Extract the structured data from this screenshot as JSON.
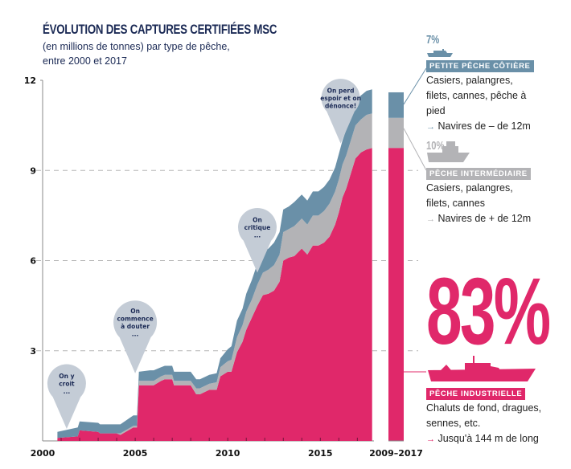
{
  "title": "ÉVOLUTION DES CAPTURES CERTIFIÉES MSC",
  "subtitle_line1": "(en millions de tonnes) par type de pêche,",
  "subtitle_line2": "entre 2000 et 2017",
  "colors": {
    "industrial": "#e0286a",
    "intermediate": "#b3b3b6",
    "small": "#6a90a8",
    "pin": "#c4ccd6",
    "text_dark": "#1b2a55"
  },
  "pins": [
    {
      "lines": [
        "On y",
        "croit",
        "..."
      ],
      "year": 2001.3,
      "tip_value": 0.4
    },
    {
      "lines": [
        "On",
        "commence",
        "à douter",
        "..."
      ],
      "year": 2005.0,
      "tip_value": 2.25
    },
    {
      "lines": [
        "On",
        "critique",
        "..."
      ],
      "year": 2011.6,
      "tip_value": 5.6
    },
    {
      "lines": [
        "On perd",
        "espoir et on",
        "dénonce!"
      ],
      "year": 2016.1,
      "tip_value": 9.9
    }
  ],
  "legend": {
    "small": {
      "pct": "7%",
      "label": "PETITE PÊCHE CÔTIÈRE",
      "desc": "Casiers, palangres, filets, cannes, pêche à pied",
      "vessels": "Navires de – de 12m"
    },
    "intermediate": {
      "pct": "10%",
      "label": "PÊCHE INTERMÉDIAIRE",
      "desc": "Casiers, palangres, filets, cannes",
      "vessels": "Navires de + de 12m"
    },
    "industrial": {
      "pct": "83%",
      "label": "PÊCHE INDUSTRIELLE",
      "desc": "Chaluts de fond, dragues, sennes, etc.",
      "vessels": "Jusqu'à 144 m de long"
    }
  },
  "chart_data": {
    "type": "area",
    "stacked": true,
    "title": "ÉVOLUTION DES CAPTURES CERTIFIÉES MSC",
    "subtitle": "(en millions de tonnes) par type de pêche, entre 2000 et 2017",
    "xlabel": "",
    "ylabel": "millions de tonnes",
    "xlim": [
      2000,
      2017.9
    ],
    "ylim": [
      0,
      12
    ],
    "yticks": [
      3,
      6,
      9,
      12
    ],
    "xticks": [
      2000,
      2005,
      2010,
      2015
    ],
    "grid": "dashed horizontal",
    "series_order": [
      "Pêche industrielle",
      "Pêche intermédiaire",
      "Petite pêche côtière"
    ],
    "x": [
      2000.8,
      2001.9,
      2002.0,
      2003.0,
      2003.1,
      2004.0,
      2004.2,
      2004.9,
      2005.1,
      2005.2,
      2005.8,
      2006.0,
      2006.4,
      2006.6,
      2007.0,
      2007.1,
      2007.3,
      2008.0,
      2008.3,
      2008.5,
      2009.0,
      2009.4,
      2009.6,
      2010.0,
      2010.2,
      2010.5,
      2010.8,
      2011.0,
      2011.3,
      2011.6,
      2011.9,
      2012.2,
      2012.5,
      2012.8,
      2013.0,
      2013.3,
      2013.6,
      2014.0,
      2014.3,
      2014.6,
      2014.9,
      2015.2,
      2015.5,
      2015.8,
      2016.0,
      2016.2,
      2016.4,
      2016.7,
      2016.9,
      2017.2,
      2017.5,
      2017.8
    ],
    "series": [
      {
        "name": "Pêche industrielle",
        "values": [
          0.1,
          0.15,
          0.35,
          0.3,
          0.25,
          0.25,
          0.2,
          0.45,
          0.45,
          1.85,
          1.85,
          1.85,
          2.0,
          2.05,
          2.05,
          1.85,
          1.85,
          1.85,
          1.55,
          1.55,
          1.7,
          1.7,
          2.15,
          2.3,
          2.3,
          2.95,
          3.3,
          3.7,
          4.1,
          4.5,
          4.85,
          4.9,
          5.0,
          5.3,
          6.0,
          6.1,
          6.15,
          6.4,
          6.2,
          6.5,
          6.5,
          6.6,
          6.8,
          7.2,
          7.6,
          8.1,
          8.4,
          9.0,
          9.4,
          9.6,
          9.7,
          9.75
        ]
      },
      {
        "name": "Pêche intermédiaire",
        "values": [
          0.0,
          0.0,
          0.0,
          0.0,
          0.0,
          0.0,
          0.05,
          0.05,
          0.05,
          0.15,
          0.15,
          0.15,
          0.15,
          0.15,
          0.15,
          0.15,
          0.15,
          0.15,
          0.2,
          0.2,
          0.2,
          0.25,
          0.3,
          0.35,
          0.4,
          0.5,
          0.55,
          0.6,
          0.6,
          0.7,
          0.75,
          0.8,
          0.85,
          0.9,
          0.95,
          0.95,
          1.0,
          1.0,
          1.0,
          1.0,
          1.0,
          1.05,
          1.1,
          1.1,
          1.1,
          1.1,
          1.1,
          1.1,
          1.1,
          1.1,
          1.15,
          1.15
        ]
      },
      {
        "name": "Petite pêche côtière",
        "values": [
          0.2,
          0.3,
          0.3,
          0.3,
          0.3,
          0.3,
          0.3,
          0.35,
          0.35,
          0.3,
          0.35,
          0.35,
          0.3,
          0.3,
          0.3,
          0.3,
          0.3,
          0.3,
          0.3,
          0.3,
          0.3,
          0.3,
          0.3,
          0.4,
          0.45,
          0.55,
          0.55,
          0.6,
          0.65,
          0.7,
          0.7,
          0.7,
          0.75,
          0.75,
          0.75,
          0.75,
          0.8,
          0.8,
          0.8,
          0.8,
          0.8,
          0.8,
          0.8,
          0.8,
          0.85,
          0.8,
          0.85,
          0.8,
          0.8,
          0.8,
          0.8,
          0.8
        ]
      }
    ],
    "summary_bar": {
      "label": "2009–2017",
      "shares_percent": {
        "Pêche industrielle": 83,
        "Pêche intermédiaire": 10,
        "Petite pêche côtière": 7
      },
      "stack_values": [
        9.75,
        1.0,
        0.85
      ]
    }
  }
}
